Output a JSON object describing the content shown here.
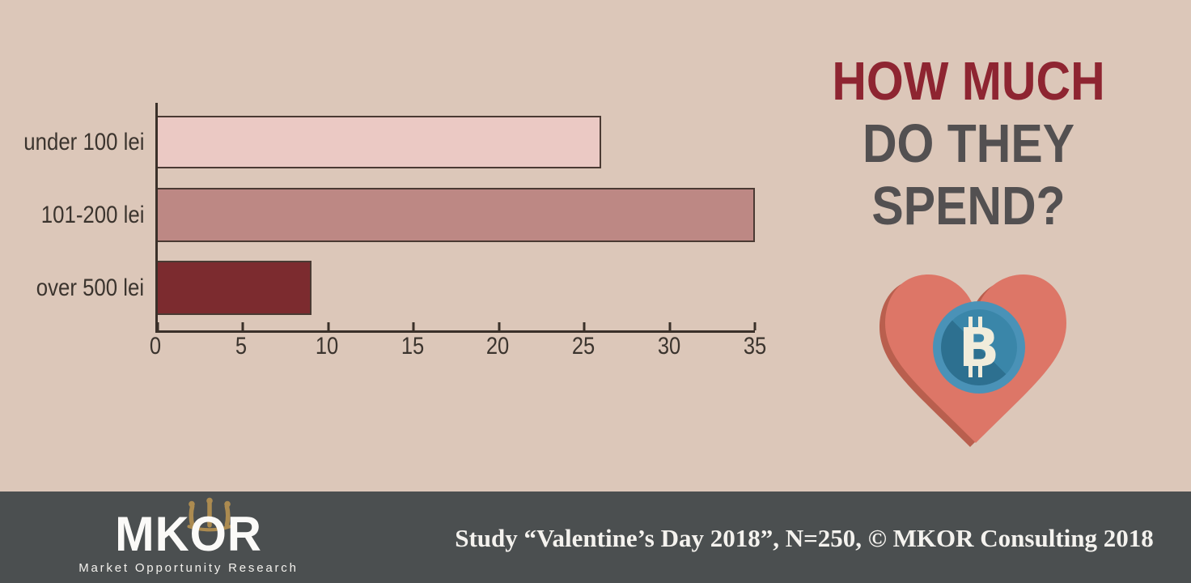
{
  "page": {
    "background": "#dcc7b9"
  },
  "title": {
    "lines": [
      {
        "text": "HOW MUCH",
        "color": "#8e2531"
      },
      {
        "text": "DO THEY",
        "color": "#535051"
      },
      {
        "text": "SPEND?",
        "color": "#535051"
      }
    ]
  },
  "chart_data": {
    "type": "bar",
    "orientation": "horizontal",
    "title": "",
    "categories": [
      "under 100 lei",
      "101-200 lei",
      "over 500 lei"
    ],
    "values": [
      26,
      35,
      9
    ],
    "unit": "percent of respondents",
    "bar_colors": [
      "#ebc9c4",
      "#bd8884",
      "#7c2b2f"
    ],
    "bar_border_color": "#4a3a33",
    "xlim": [
      0,
      35
    ],
    "xticks": [
      0,
      5,
      10,
      15,
      20,
      25,
      30,
      35
    ],
    "grid": false,
    "legend": false,
    "axis_color": "#3a3029",
    "label_color": "#3b342e"
  },
  "illustration": {
    "heart_color": "#dd7667",
    "heart_bevel_color": "#b95f4e",
    "coin_ring_color": "#4a92b7",
    "coin_dark_color": "#2d7090",
    "coin_light_color": "#3a86a9",
    "bitcoin_symbol": "B",
    "bitcoin_symbol_color": "#f1ecdb"
  },
  "footer": {
    "background": "#4b4f50",
    "text_color": "#f4f2ee",
    "logo": {
      "name": "MKOR",
      "tagline": "Market Opportunity Research",
      "crown_color": "#ac8b50",
      "name_color": "#fbfaf8"
    },
    "citation": "Study “Valentine’s Day 2018”, N=250, © MKOR Consulting 2018"
  }
}
